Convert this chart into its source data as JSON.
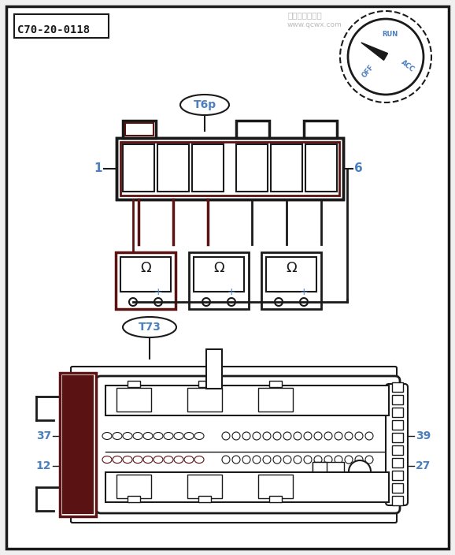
{
  "bg": "#f0f0f0",
  "white": "#ffffff",
  "lc": "#1a1a1a",
  "brown": "#5a1212",
  "blue": "#4a7fc0",
  "gray_text": "#bbbbbb",
  "title": "C70-20-0118",
  "t6p": "T6p",
  "t73": "T73",
  "watermark1": "汽车维修技术网",
  "watermark2": "www.qcwx.com",
  "dial_off": "OFF",
  "dial_run": "RUN",
  "dial_acc": "ACC"
}
